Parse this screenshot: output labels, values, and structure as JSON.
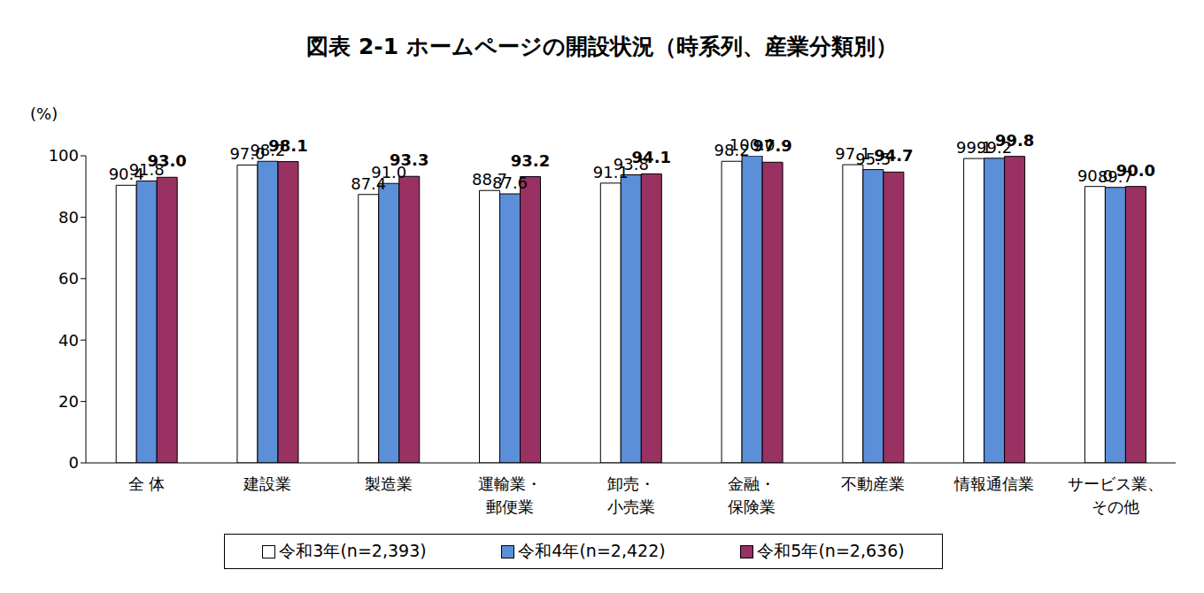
{
  "chart_data": {
    "type": "bar",
    "title": "図表 2-1 ホームページの開設状況（時系列、産業分類別）",
    "ylabel": "(%)",
    "categories": [
      "全 体",
      "建設業",
      "製造業",
      "運輸業・\n郵便業",
      "卸売・\n小売業",
      "金融・\n保険業",
      "不動産業",
      "情報通信業",
      "サービス業、\nその他"
    ],
    "series": [
      {
        "name": "令和3年(n=2,393)",
        "color": "#ffffff",
        "values": [
          90.4,
          97.0,
          87.4,
          88.7,
          91.1,
          98.2,
          97.1,
          99.1,
          90.0
        ],
        "value_labels": [
          "90.4",
          "97.0",
          "87.4",
          "88.7",
          "91.1",
          "98.2",
          "97.1",
          "99.1",
          "90.0"
        ]
      },
      {
        "name": "令和4年(n=2,422)",
        "color": "#5b8fd8",
        "values": [
          91.8,
          98.2,
          91.0,
          87.6,
          93.8,
          100.0,
          95.5,
          99.2,
          89.7
        ],
        "value_labels": [
          "91.8",
          "98.2",
          "91.0",
          "87.6",
          "93.8",
          "100.0",
          "95.5",
          "99.2",
          "89.7"
        ]
      },
      {
        "name": "令和5年(n=2,636)",
        "color": "#9a3163",
        "values": [
          93.0,
          98.1,
          93.3,
          93.2,
          94.1,
          97.9,
          94.7,
          99.8,
          90.0
        ],
        "value_labels": [
          "93.0",
          "98.1",
          "93.3",
          "93.2",
          "94.1",
          "97.9",
          "94.7",
          "99.8",
          "90.0"
        ]
      }
    ],
    "ylim": [
      0,
      100
    ],
    "yticks": [
      0,
      20,
      40,
      60,
      80,
      100
    ],
    "grid": false,
    "legend": "bottom",
    "data_labels": true
  }
}
